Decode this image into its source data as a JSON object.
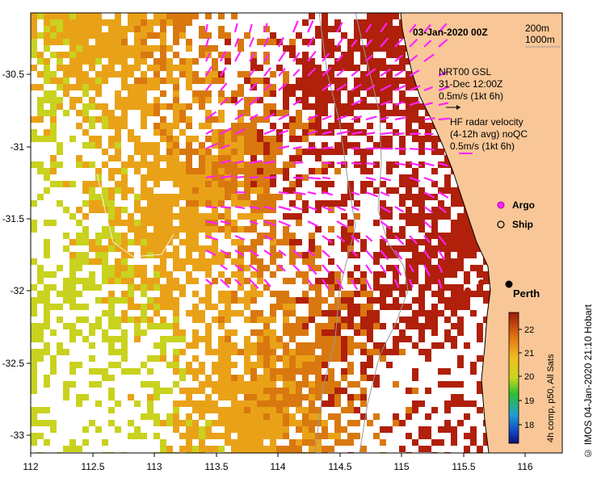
{
  "map": {
    "timestamp": "03-Jan-2020 00Z",
    "depth_labels": [
      "200m",
      "1000m"
    ],
    "layer_info": {
      "product": "NRT00 GSL",
      "date": "31-Dec 12:00Z",
      "gsl_scale": "0.5m/s (1kt 6h)",
      "radar_title": "HF radar velocity",
      "radar_sub": "(4-12h avg) noQC",
      "radar_scale": "0.5m/s (1kt 6h)"
    },
    "legend": {
      "argo": "Argo",
      "ship": "Ship"
    },
    "city": "Perth",
    "colorbar": {
      "label": "4h comp, p50, All Sats",
      "ticks": [
        "22",
        "21",
        "20",
        "19",
        "18"
      ]
    },
    "x_ticks": [
      "112",
      "112.5",
      "113",
      "113.5",
      "114",
      "114.5",
      "115",
      "115.5",
      "116"
    ],
    "y_ticks": [
      "-30.5",
      "-31",
      "-31.5",
      "-32",
      "-32.5",
      "-33"
    ],
    "credit": "© IMOS 04-Jan-2020 21:10 Hobart",
    "colors": {
      "land": "#f9c797",
      "sst_hot": "#b0200a",
      "sst_warm": "#d9780f",
      "sst_mid": "#e9a218",
      "sst_cool": "#c9d21e",
      "radar": "#ff22ff"
    }
  }
}
